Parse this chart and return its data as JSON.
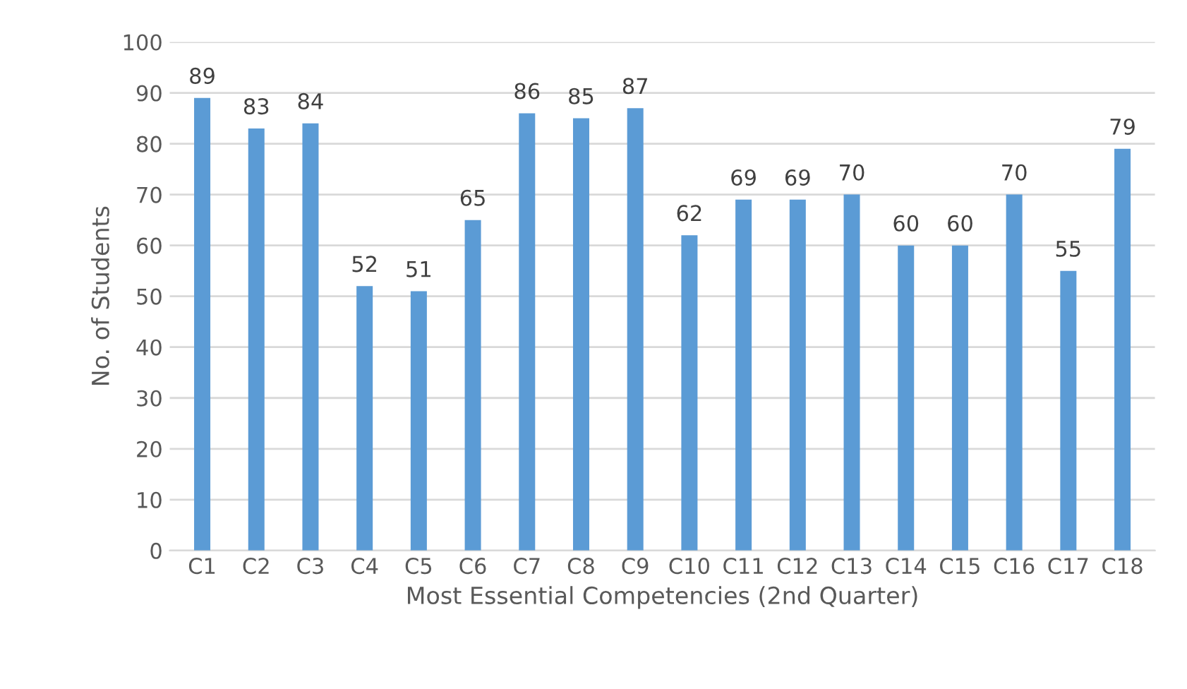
{
  "chart_data": {
    "type": "bar",
    "xlabel": "Most Essential Competencies (2nd Quarter)",
    "ylabel": "No. of Students",
    "categories": [
      "C1",
      "C2",
      "C3",
      "C4",
      "C5",
      "C6",
      "C7",
      "C8",
      "C9",
      "C10",
      "C11",
      "C12",
      "C13",
      "C14",
      "C15",
      "C16",
      "C17",
      "C18"
    ],
    "values": [
      89,
      83,
      84,
      52,
      51,
      65,
      86,
      85,
      87,
      62,
      69,
      69,
      70,
      60,
      60,
      70,
      55,
      79
    ],
    "color": "#5b9bd5",
    "ylim": [
      0,
      100
    ],
    "yticks": [
      0,
      10,
      20,
      30,
      40,
      50,
      60,
      70,
      80,
      90,
      100
    ],
    "grid": "y",
    "data_labels": true
  }
}
